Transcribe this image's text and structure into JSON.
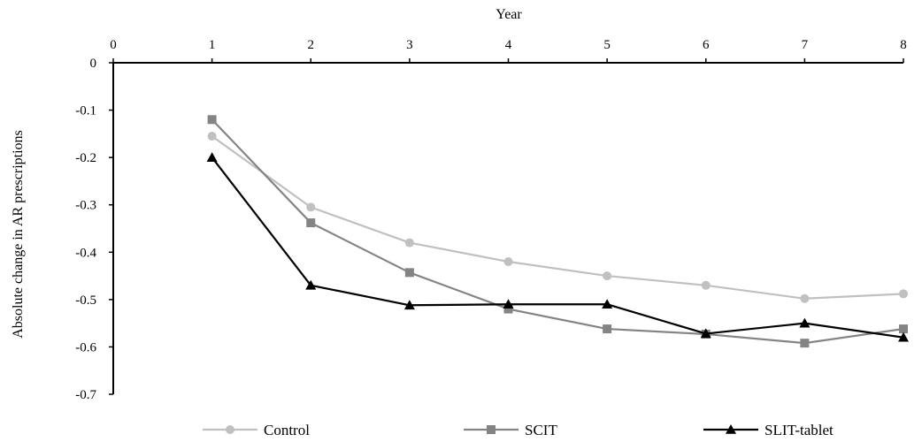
{
  "chart_data": {
    "type": "line",
    "xlabel": "Year",
    "ylabel": "Absolute change in AR prescriptions",
    "xlim": [
      0,
      8
    ],
    "ylim": [
      -0.7,
      0
    ],
    "x_ticks": [
      0,
      1,
      2,
      3,
      4,
      5,
      6,
      7,
      8
    ],
    "y_ticks": [
      0,
      -0.1,
      -0.2,
      -0.3,
      -0.4,
      -0.5,
      -0.6,
      -0.7
    ],
    "y_tick_labels": [
      "0",
      "-0.1",
      "-0.2",
      "-0.3",
      "-0.4",
      "-0.5",
      "-0.6",
      "-0.7"
    ],
    "x_axis_position": "top",
    "grid": false,
    "legend_position": "bottom",
    "x": [
      1,
      2,
      3,
      4,
      5,
      6,
      7,
      8
    ],
    "series": [
      {
        "name": "Control",
        "color": "#c0c0c0",
        "marker": "circle",
        "values": [
          -0.155,
          -0.305,
          -0.38,
          -0.42,
          -0.45,
          -0.47,
          -0.498,
          -0.488
        ]
      },
      {
        "name": "SCIT",
        "color": "#848484",
        "marker": "square",
        "values": [
          -0.12,
          -0.338,
          -0.443,
          -0.52,
          -0.562,
          -0.573,
          -0.592,
          -0.562
        ]
      },
      {
        "name": "SLIT-tablet",
        "color": "#000000",
        "marker": "triangle",
        "values": [
          -0.2,
          -0.47,
          -0.512,
          -0.51,
          -0.51,
          -0.572,
          -0.55,
          -0.58
        ]
      }
    ]
  }
}
